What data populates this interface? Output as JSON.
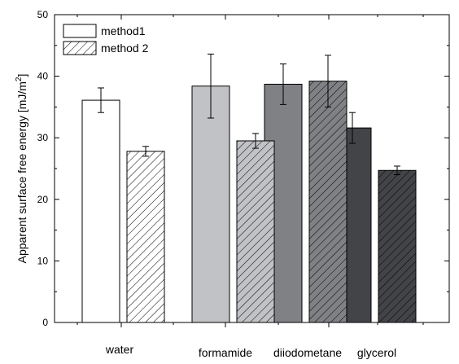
{
  "chart_data": {
    "type": "bar",
    "title": "",
    "xlabel": "",
    "ylabel": "Apparent surface free energy [mJ/m",
    "ylabel_superscript": "2",
    "ylabel_suffix": "]",
    "ylim": [
      0,
      50
    ],
    "yticks": [
      0,
      10,
      20,
      30,
      40,
      50
    ],
    "grid": false,
    "legend_position": "top-left",
    "categories": [
      "water",
      "formamide",
      "diiodometane",
      "glycerol"
    ],
    "series": [
      {
        "name": "method1",
        "pattern": "solid",
        "values": [
          36.1,
          38.4,
          38.7,
          31.6
        ],
        "errors": [
          2.0,
          5.2,
          3.3,
          2.5
        ],
        "fill_colors": [
          "#ffffff",
          "#c0c2c5",
          "#7f8185",
          "#424447"
        ]
      },
      {
        "name": "method 2",
        "pattern": "hatched",
        "values": [
          27.8,
          29.5,
          39.2,
          24.7
        ],
        "errors": [
          0.8,
          1.2,
          4.2,
          0.7
        ],
        "fill_colors": [
          "#ffffff",
          "#c0c2c5",
          "#7f8185",
          "#424447"
        ]
      }
    ]
  }
}
